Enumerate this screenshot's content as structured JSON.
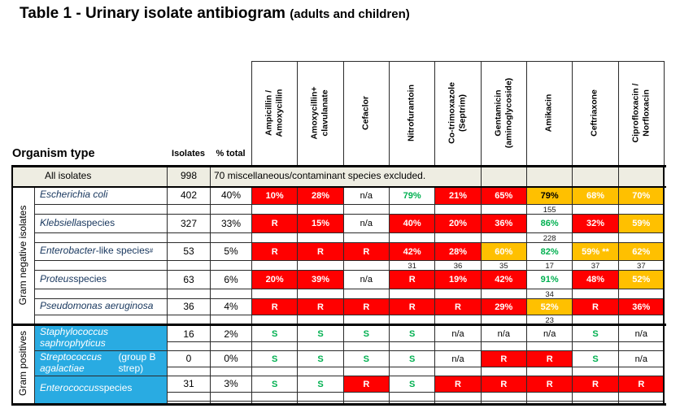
{
  "title": {
    "main": "Table 1 - Urinary isolate antibiogram ",
    "suffix": "(adults and children)"
  },
  "colors": {
    "resistant_red": "#FF0000",
    "intermediate_yellow": "#FFC000",
    "susceptible_green": "#00B050",
    "gram_positive_blue": "#29ABE2",
    "all_isolates_beige": "#EEEDE2"
  },
  "header": {
    "organism_type": "Organism type",
    "isolates": "Isolates",
    "pct_total": "% total",
    "antibiotics": [
      "Ampicillin /\nAmoxycillin",
      "Amoxycillin+\nclavulanate",
      "Cefaclor",
      "Nitrofurantoin",
      "Co-trimoxazole\n(Septrim)",
      "Gentamicin\n(aminoglycoside)",
      "Amikacin",
      "Ceftriaxone",
      "Ciprofloxacin /\nNorfloxacin"
    ]
  },
  "all_isolates": {
    "label": "All isolates",
    "isolates": "998",
    "note": "70 miscellaneous/contaminant species excluded."
  },
  "groups": [
    {
      "label": "Gram negative isolates"
    },
    {
      "label": "Gram positives"
    }
  ],
  "rows": [
    {
      "group": 0,
      "name": {
        "italic": "Escherichia coli",
        "regular": "",
        "sup": ""
      },
      "isolates": "402",
      "pct": "40%",
      "cells": [
        {
          "t": "10%",
          "c": "red"
        },
        {
          "t": "28%",
          "c": "red"
        },
        {
          "t": "n/a",
          "c": "plain"
        },
        {
          "t": "79%",
          "c": "green"
        },
        {
          "t": "21%",
          "c": "red"
        },
        {
          "t": "65%",
          "c": "red"
        },
        {
          "t": "79%",
          "c": "yellowblack"
        },
        {
          "t": "68%",
          "c": "yellow"
        },
        {
          "t": "70%",
          "c": "yellow"
        }
      ],
      "subs": [
        "",
        "",
        "",
        "",
        "",
        "",
        "155",
        "",
        ""
      ]
    },
    {
      "group": 0,
      "name": {
        "italic": "Klebsiella",
        "regular": " species",
        "sup": ""
      },
      "isolates": "327",
      "pct": "33%",
      "cells": [
        {
          "t": "R",
          "c": "red"
        },
        {
          "t": "15%",
          "c": "red"
        },
        {
          "t": "n/a",
          "c": "plain"
        },
        {
          "t": "40%",
          "c": "red"
        },
        {
          "t": "20%",
          "c": "red"
        },
        {
          "t": "36%",
          "c": "red"
        },
        {
          "t": "86%",
          "c": "green"
        },
        {
          "t": "32%",
          "c": "red"
        },
        {
          "t": "59%",
          "c": "yellow"
        }
      ],
      "subs": [
        "",
        "",
        "",
        "",
        "",
        "",
        "228",
        "",
        ""
      ]
    },
    {
      "group": 0,
      "name": {
        "italic": "Enterobacter",
        "regular": " -like species",
        "sup": "#"
      },
      "isolates": "53",
      "pct": "5%",
      "cells": [
        {
          "t": "R",
          "c": "red"
        },
        {
          "t": "R",
          "c": "red"
        },
        {
          "t": "R",
          "c": "red"
        },
        {
          "t": "42%",
          "c": "red"
        },
        {
          "t": "28%",
          "c": "red"
        },
        {
          "t": "60%",
          "c": "yellow"
        },
        {
          "t": "82%",
          "c": "green"
        },
        {
          "t": "59% **",
          "c": "yellow"
        },
        {
          "t": "62%",
          "c": "yellow"
        }
      ],
      "subs": [
        "",
        "",
        "",
        "31",
        "36",
        "35",
        "17",
        "37",
        "37"
      ]
    },
    {
      "group": 0,
      "name": {
        "italic": "Proteus",
        "regular": " species",
        "sup": ""
      },
      "isolates": "63",
      "pct": "6%",
      "cells": [
        {
          "t": "20%",
          "c": "red"
        },
        {
          "t": "39%",
          "c": "red"
        },
        {
          "t": "n/a",
          "c": "plain"
        },
        {
          "t": "R",
          "c": "red"
        },
        {
          "t": "19%",
          "c": "red"
        },
        {
          "t": "42%",
          "c": "red"
        },
        {
          "t": "91%",
          "c": "green"
        },
        {
          "t": "48%",
          "c": "red"
        },
        {
          "t": "52%",
          "c": "yellow"
        }
      ],
      "subs": [
        "",
        "",
        "",
        "",
        "",
        "",
        "34",
        "",
        ""
      ]
    },
    {
      "group": 0,
      "name": {
        "italic": "Pseudomonas aeruginosa",
        "regular": "",
        "sup": ""
      },
      "isolates": "36",
      "pct": "4%",
      "cells": [
        {
          "t": "R",
          "c": "red"
        },
        {
          "t": "R",
          "c": "red"
        },
        {
          "t": "R",
          "c": "red"
        },
        {
          "t": "R",
          "c": "red"
        },
        {
          "t": "R",
          "c": "red"
        },
        {
          "t": "29%",
          "c": "red"
        },
        {
          "t": "52%",
          "c": "yellow"
        },
        {
          "t": "R",
          "c": "red"
        },
        {
          "t": "36%",
          "c": "red"
        }
      ],
      "subs": [
        "",
        "",
        "",
        "",
        "",
        "",
        "23",
        "",
        ""
      ]
    },
    {
      "group": 1,
      "name": {
        "italic": "Staphylococcus saphrophyticus",
        "regular": "",
        "sup": ""
      },
      "isolates": "16",
      "pct": "2%",
      "cells": [
        {
          "t": "S",
          "c": "green"
        },
        {
          "t": "S",
          "c": "green"
        },
        {
          "t": "S",
          "c": "green"
        },
        {
          "t": "S",
          "c": "green"
        },
        {
          "t": "n/a",
          "c": "plain"
        },
        {
          "t": "n/a",
          "c": "plain"
        },
        {
          "t": "n/a",
          "c": "plain"
        },
        {
          "t": "S",
          "c": "green"
        },
        {
          "t": "n/a",
          "c": "plain"
        }
      ],
      "subs": [
        "",
        "",
        "",
        "",
        "",
        "",
        "",
        "",
        ""
      ]
    },
    {
      "group": 1,
      "name": {
        "italic": "Streptococcus agalactiae",
        "regular": " (group B strep)",
        "sup": ""
      },
      "isolates": "0",
      "pct": "0%",
      "cells": [
        {
          "t": "S",
          "c": "green"
        },
        {
          "t": "S",
          "c": "green"
        },
        {
          "t": "S",
          "c": "green"
        },
        {
          "t": "S",
          "c": "green"
        },
        {
          "t": "n/a",
          "c": "plain"
        },
        {
          "t": "R",
          "c": "red"
        },
        {
          "t": "R",
          "c": "red"
        },
        {
          "t": "S",
          "c": "green"
        },
        {
          "t": "n/a",
          "c": "plain"
        }
      ],
      "subs": [
        "",
        "",
        "",
        "",
        "",
        "",
        "",
        "",
        ""
      ]
    },
    {
      "group": 1,
      "name": {
        "italic": "Enterococcus",
        "regular": " species",
        "sup": ""
      },
      "isolates": "31",
      "pct": "3%",
      "cells": [
        {
          "t": "S",
          "c": "green"
        },
        {
          "t": "S",
          "c": "green"
        },
        {
          "t": "R",
          "c": "red"
        },
        {
          "t": "S",
          "c": "green"
        },
        {
          "t": "R",
          "c": "red"
        },
        {
          "t": "R",
          "c": "red"
        },
        {
          "t": "R",
          "c": "red"
        },
        {
          "t": "R",
          "c": "red"
        },
        {
          "t": "R",
          "c": "red"
        }
      ],
      "subs": [
        "",
        "",
        "",
        "",
        "",
        "",
        "",
        "",
        ""
      ]
    }
  ]
}
